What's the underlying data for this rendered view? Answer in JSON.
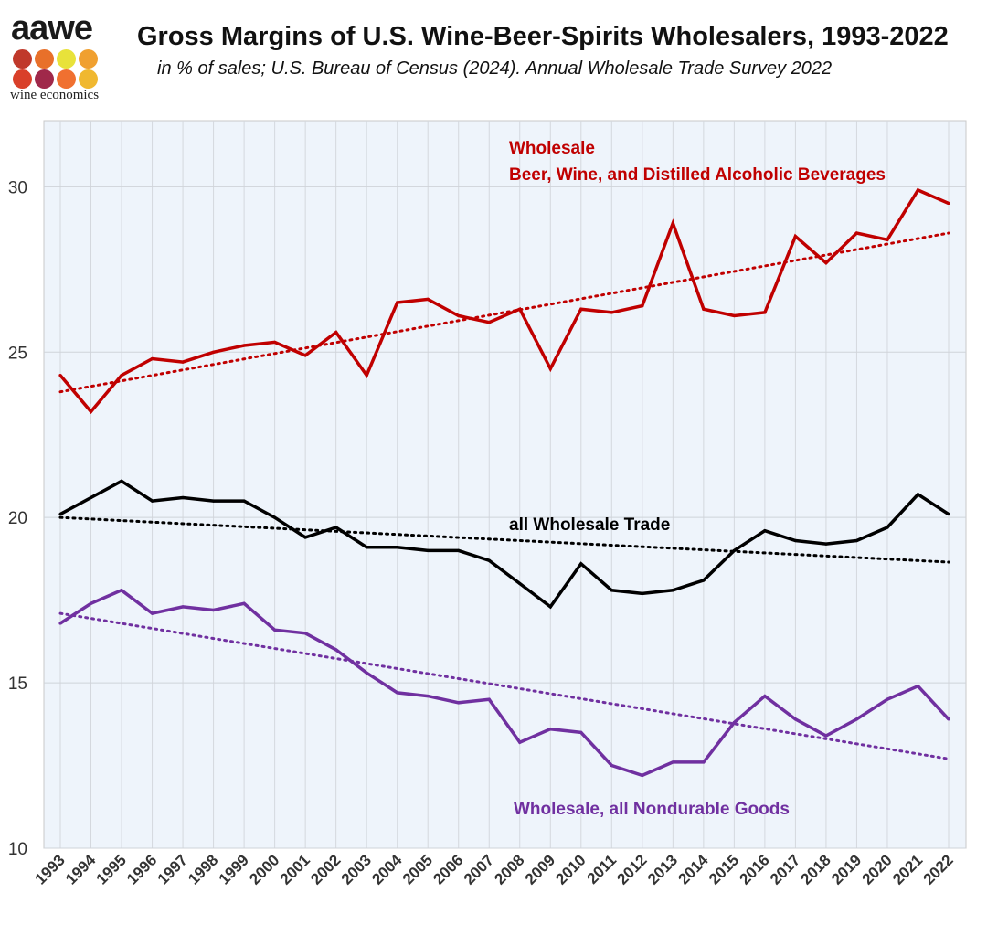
{
  "logo": {
    "name": "aawe",
    "tagline": "wine economics",
    "dot_colors": [
      "#c0392b",
      "#e8702a",
      "#e8e23a",
      "#f0a030",
      "#d9402a",
      "#a0284a",
      "#f07030",
      "#f0b830"
    ]
  },
  "title": "Gross Margins of U.S. Wine-Beer-Spirits Wholesalers, 1993-2022",
  "subtitle": "in % of sales; U.S. Bureau of Census (2024). Annual Wholesale Trade Survey 2022",
  "chart_data": {
    "type": "line",
    "categories": [
      "1993",
      "1994",
      "1995",
      "1996",
      "1997",
      "1998",
      "1999",
      "2000",
      "2001",
      "2002",
      "2003",
      "2004",
      "2005",
      "2006",
      "2007",
      "2008",
      "2009",
      "2010",
      "2011",
      "2012",
      "2013",
      "2014",
      "2015",
      "2016",
      "2017",
      "2018",
      "2019",
      "2020",
      "2021",
      "2022"
    ],
    "yticks": [
      "10",
      "15",
      "20",
      "25",
      "30"
    ],
    "ylim": [
      10,
      32
    ],
    "grid": true,
    "series": [
      {
        "name": "Wholesale Beer, Wine, and Distilled Alcoholic Beverages",
        "label_lines": [
          "Wholesale",
          "Beer, Wine, and Distilled Alcoholic Beverages"
        ],
        "color": "#c00000",
        "values": [
          24.3,
          23.2,
          24.3,
          24.8,
          24.7,
          25.0,
          25.2,
          25.3,
          24.9,
          25.6,
          24.3,
          26.5,
          26.6,
          26.1,
          25.9,
          26.3,
          24.5,
          26.3,
          26.2,
          26.4,
          28.9,
          26.3,
          26.1,
          26.2,
          28.5,
          27.7,
          28.6,
          28.4,
          29.9,
          29.5
        ],
        "trend": [
          23.8,
          28.6
        ]
      },
      {
        "name": "all Wholesale Trade",
        "label_lines": [
          "all Wholesale Trade"
        ],
        "color": "#000000",
        "values": [
          20.1,
          20.6,
          21.1,
          20.5,
          20.6,
          20.5,
          20.5,
          20.0,
          19.4,
          19.7,
          19.1,
          19.1,
          19.0,
          19.0,
          18.7,
          18.0,
          17.3,
          18.6,
          17.8,
          17.7,
          17.8,
          18.1,
          19.0,
          19.6,
          19.3,
          19.2,
          19.3,
          19.7,
          20.7,
          20.1
        ],
        "trend": [
          20.0,
          18.65
        ]
      },
      {
        "name": "Wholesale, all Nondurable Goods",
        "label_lines": [
          "Wholesale, all Nondurable Goods"
        ],
        "color": "#7030a0",
        "values": [
          16.8,
          17.4,
          17.8,
          17.1,
          17.3,
          17.2,
          17.4,
          16.6,
          16.5,
          16.0,
          15.3,
          14.7,
          14.6,
          14.4,
          14.5,
          13.2,
          13.6,
          13.5,
          12.5,
          12.2,
          12.6,
          12.6,
          13.8,
          14.6,
          13.9,
          13.4,
          13.9,
          14.5,
          14.9,
          13.9
        ],
        "trend": [
          17.1,
          12.7
        ]
      }
    ]
  }
}
